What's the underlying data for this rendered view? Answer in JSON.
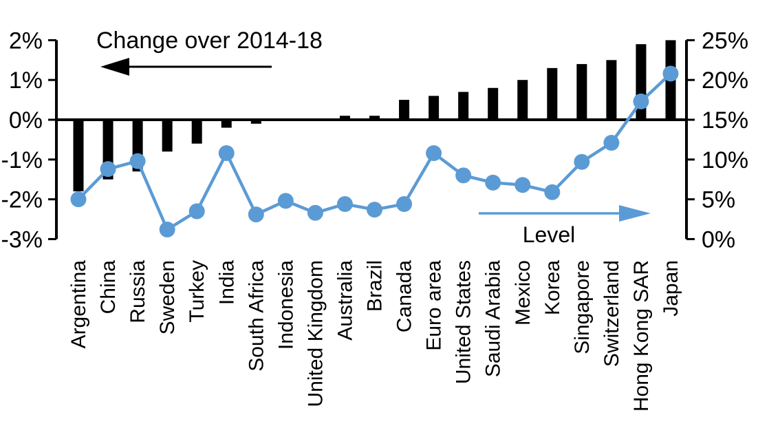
{
  "chart_data": {
    "type": "bar",
    "subtype": "combo-bar-line-dual-axis",
    "title": "",
    "categories": [
      "Argentina",
      "China",
      "Russia",
      "Sweden",
      "Turkey",
      "India",
      "South Africa",
      "Indonesia",
      "United Kingdom",
      "Australia",
      "Brazil",
      "Canada",
      "Euro area",
      "United States",
      "Saudi Arabia",
      "Mexico",
      "Korea",
      "Singapore",
      "Switzerland",
      "Hong Kong SAR",
      "Japan"
    ],
    "series": [
      {
        "name": "Change over 2014-18",
        "type": "bar",
        "axis": "left",
        "color": "#000000",
        "values": [
          -1.8,
          -1.5,
          -1.3,
          -0.8,
          -0.6,
          -0.2,
          -0.1,
          0,
          0,
          0.1,
          0.1,
          0.5,
          0.6,
          0.7,
          0.8,
          1.0,
          1.3,
          1.4,
          1.5,
          1.9,
          2.0
        ]
      },
      {
        "name": "Level",
        "type": "line",
        "axis": "right",
        "color": "#5B9BD5",
        "values": [
          5.0,
          8.8,
          9.8,
          1.2,
          3.5,
          10.8,
          3.1,
          4.8,
          3.3,
          4.4,
          3.7,
          4.4,
          10.8,
          8.0,
          7.1,
          6.8,
          5.9,
          9.7,
          12.1,
          17.3,
          20.8
        ]
      }
    ],
    "left_axis": {
      "min": -3,
      "max": 2,
      "tick_step": 1,
      "tick_labels": [
        "2%",
        "1%",
        "0%",
        "-1%",
        "-2%",
        "-3%"
      ]
    },
    "right_axis": {
      "min": 0,
      "max": 25,
      "tick_step": 5,
      "tick_labels": [
        "25%",
        "20%",
        "15%",
        "10%",
        "5%",
        "0%"
      ]
    },
    "annotations": {
      "left_label": "Change over 2014-18",
      "right_label": "Level"
    },
    "grid": false,
    "legend_position": "none"
  }
}
